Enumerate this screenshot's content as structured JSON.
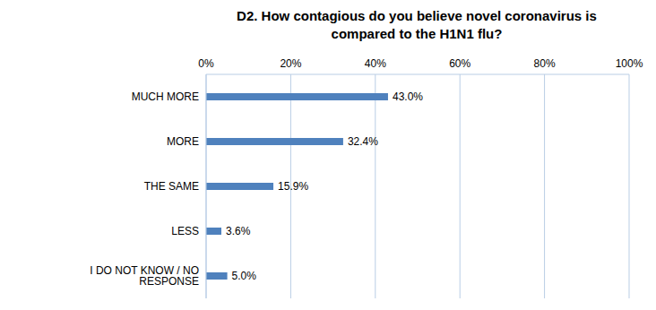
{
  "chart_data": {
    "type": "bar",
    "orientation": "horizontal",
    "title": "D2. How contagious do you believe novel coronavirus is compared to the H1N1 flu?",
    "categories": [
      "MUCH MORE",
      "MORE",
      "THE SAME",
      "LESS",
      "I DO NOT KNOW / NO RESPONSE"
    ],
    "values": [
      43.0,
      32.4,
      15.9,
      3.6,
      5.0
    ],
    "value_labels": [
      "43.0%",
      "32.4%",
      "15.9%",
      "3.6%",
      "5.0%"
    ],
    "color": "#4f81bd",
    "xlim": [
      0,
      100
    ],
    "xticks": [
      {
        "value": 0,
        "label": "0%"
      },
      {
        "value": 20,
        "label": "20%"
      },
      {
        "value": 40,
        "label": "40%"
      },
      {
        "value": 60,
        "label": "60%"
      },
      {
        "value": 80,
        "label": "80%"
      },
      {
        "value": 100,
        "label": "100%"
      }
    ],
    "grid": true,
    "data_labels": true
  }
}
